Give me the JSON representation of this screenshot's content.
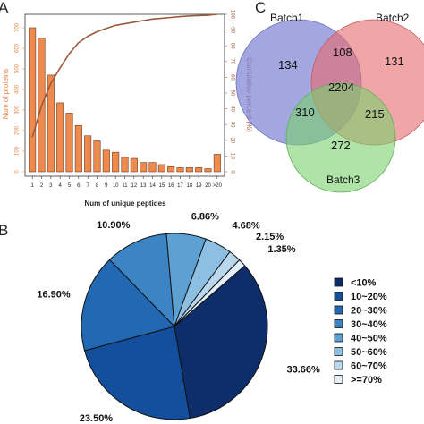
{
  "panels": {
    "a": "A",
    "b": "B",
    "c": "C"
  },
  "colors": {
    "bar": "#ef8a4e",
    "cum_line": "#9b5a3a",
    "left_axis_text": "#e8803f",
    "right_axis_text": "#9b5a3a"
  },
  "chart_data": [
    {
      "type": "bar",
      "categories": [
        "1",
        "2",
        "3",
        "4",
        "5",
        "6",
        "7",
        "8",
        "9",
        "10",
        "11",
        "12",
        "13",
        "14",
        "15",
        "16",
        "17",
        "18",
        "19",
        "20",
        ">20"
      ],
      "values": [
        700,
        650,
        470,
        335,
        285,
        225,
        175,
        150,
        105,
        95,
        70,
        65,
        45,
        45,
        35,
        25,
        20,
        20,
        20,
        15,
        85
      ],
      "xlabel": "Num of unique peptides",
      "ylabel": "Num of proteins",
      "ylim": [
        0,
        700
      ],
      "yticks": [
        "0",
        "100",
        "200",
        "300",
        "400",
        "500",
        "600",
        "700"
      ],
      "secondary_axis": {
        "type": "line",
        "name": "Cumulative percent",
        "label": "Cumulative percent (%)",
        "values": [
          22,
          42,
          56,
          66,
          75,
          82,
          86,
          89,
          91,
          93,
          94,
          95,
          96,
          97,
          97.5,
          98,
          98.5,
          99,
          99.2,
          99.4,
          100
        ],
        "ylim": [
          0,
          100
        ],
        "yticks": [
          "0",
          "10",
          "20",
          "30",
          "40",
          "50",
          "60",
          "70",
          "80",
          "90",
          "100"
        ]
      }
    },
    {
      "type": "venn",
      "sets": [
        {
          "name": "Batch1",
          "color": "#7e84d6"
        },
        {
          "name": "Batch2",
          "color": "#e66a6a"
        },
        {
          "name": "Batch3",
          "color": "#7ad16e"
        }
      ],
      "regions": {
        "only1": "134",
        "only2": "131",
        "only3": "272",
        "b1_b2": "108",
        "b1_b3": "310",
        "b2_b3": "215",
        "all": "2204"
      }
    },
    {
      "type": "pie",
      "slices": [
        {
          "label": "33.66%",
          "value": 33.66,
          "legend": "<10%",
          "color": "#0d2e6b"
        },
        {
          "label": "23.50%",
          "value": 23.5,
          "legend": "10~20%",
          "color": "#134f9c"
        },
        {
          "label": "16.90%",
          "value": 16.9,
          "legend": "20~30%",
          "color": "#2268b2"
        },
        {
          "label": "10.90%",
          "value": 10.9,
          "legend": "30~40%",
          "color": "#3c84c4"
        },
        {
          "label": "6.86%",
          "value": 6.86,
          "legend": "40~50%",
          "color": "#5da1d3"
        },
        {
          "label": "4.68%",
          "value": 4.68,
          "legend": "50~60%",
          "color": "#8cbfe2"
        },
        {
          "label": "2.15%",
          "value": 2.15,
          "legend": "60~70%",
          "color": "#b9d8ee"
        },
        {
          "label": "1.35%",
          "value": 1.35,
          "legend": ">=70%",
          "color": "#e3eff9"
        }
      ]
    }
  ]
}
